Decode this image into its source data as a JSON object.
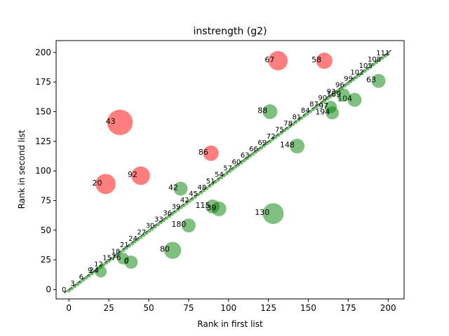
{
  "chart_data": {
    "type": "scatter",
    "title": "instrength (g2)",
    "xlabel": "Rank in first list",
    "ylabel": "Rank in second list",
    "xlim": [
      -8,
      210
    ],
    "ylim": [
      -8,
      210
    ],
    "xticks": [
      0,
      25,
      50,
      75,
      100,
      125,
      150,
      175,
      200
    ],
    "yticks": [
      0,
      25,
      50,
      75,
      100,
      125,
      150,
      175,
      200
    ],
    "diagonal_dashed": true,
    "grid": false,
    "legend": "none",
    "colors": {
      "above": "#ff0000",
      "below": "#008000",
      "diagonal": "#000000"
    },
    "highlighted_points": [
      {
        "label": "67",
        "x": 131,
        "y": 193,
        "size": 1.6,
        "group": "above"
      },
      {
        "label": "58",
        "x": 160,
        "y": 193,
        "size": 1.2,
        "group": "above"
      },
      {
        "label": "43",
        "x": 32,
        "y": 141,
        "size": 2.4,
        "group": "above"
      },
      {
        "label": "86",
        "x": 89,
        "y": 115,
        "size": 1.1,
        "group": "above"
      },
      {
        "label": "92",
        "x": 45,
        "y": 96,
        "size": 1.5,
        "group": "above"
      },
      {
        "label": "20",
        "x": 23,
        "y": 89,
        "size": 1.7,
        "group": "above"
      },
      {
        "label": "63",
        "x": 194,
        "y": 176,
        "size": 0.9,
        "group": "below"
      },
      {
        "label": "104",
        "x": 179,
        "y": 160,
        "size": 0.9,
        "group": "below"
      },
      {
        "label": "189",
        "x": 172,
        "y": 164,
        "size": 0.8,
        "group": "below"
      },
      {
        "label": "97",
        "x": 164,
        "y": 154,
        "size": 0.7,
        "group": "below"
      },
      {
        "label": "194",
        "x": 165,
        "y": 149,
        "size": 0.8,
        "group": "below"
      },
      {
        "label": "88",
        "x": 126,
        "y": 150,
        "size": 1.0,
        "group": "below"
      },
      {
        "label": "148",
        "x": 143,
        "y": 121,
        "size": 1.0,
        "group": "below"
      },
      {
        "label": "42",
        "x": 70,
        "y": 85,
        "size": 0.9,
        "group": "below"
      },
      {
        "label": "115",
        "x": 90,
        "y": 70,
        "size": 0.9,
        "group": "below"
      },
      {
        "label": "39",
        "x": 94,
        "y": 68,
        "size": 1.0,
        "group": "below"
      },
      {
        "label": "130",
        "x": 128,
        "y": 64,
        "size": 1.8,
        "group": "below"
      },
      {
        "label": "180",
        "x": 75,
        "y": 54,
        "size": 0.9,
        "group": "below"
      },
      {
        "label": "80",
        "x": 65,
        "y": 33,
        "size": 1.3,
        "group": "below"
      },
      {
        "label": "76",
        "x": 34,
        "y": 26,
        "size": 0.6,
        "group": "below"
      },
      {
        "label": "0",
        "x": 39,
        "y": 23,
        "size": 0.8,
        "group": "below"
      },
      {
        "label": "24",
        "x": 20,
        "y": 15,
        "size": 0.6,
        "group": "below"
      }
    ],
    "diagonal_band": {
      "group": "below",
      "step": 1.8,
      "start": 0,
      "end": 200,
      "offset": -2.5,
      "label_every": 3,
      "label_offset": 6
    }
  }
}
